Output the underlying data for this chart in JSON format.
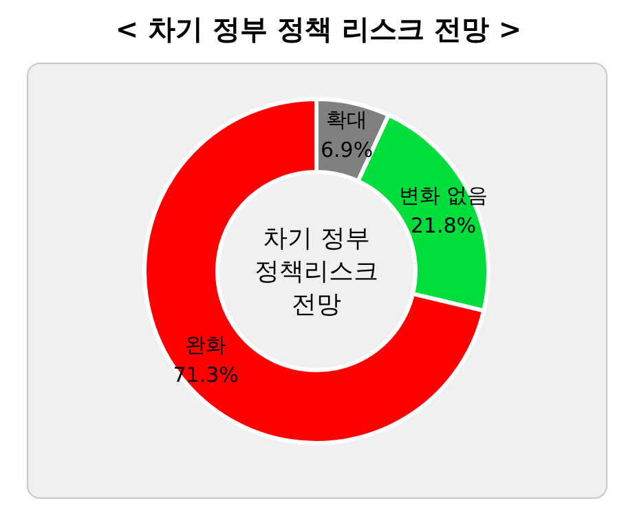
{
  "chart_data": {
    "type": "donut",
    "title": "< 차기 정부 정책 리스크 전망 >",
    "categories": [
      "확대",
      "변화 없음",
      "완화"
    ],
    "values": [
      6.9,
      21.8,
      71.3
    ],
    "colors": [
      "#808080",
      "#00dd3c",
      "#ff0000"
    ],
    "value_labels": [
      "6.9%",
      "21.8%",
      "71.3%"
    ],
    "annotations": [
      "차기 정부\n정책리스크\n전망"
    ]
  }
}
